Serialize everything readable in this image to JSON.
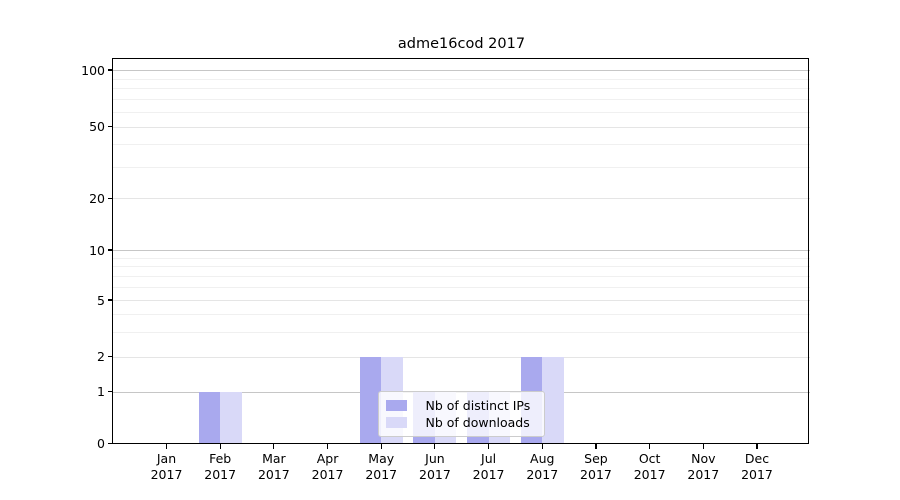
{
  "figure": {
    "title": "adme16cod 2017"
  },
  "legend": {
    "items": [
      {
        "label": "Nb of distinct IPs",
        "color": "#a9a9ee"
      },
      {
        "label": "Nb of downloads",
        "color": "#d9d9f8"
      }
    ]
  },
  "colors": {
    "bar_dark": "#a9a9ee",
    "bar_light": "#d9d9f8",
    "grid_major": "#c6c6c6",
    "grid_mid": "#e5e5e5",
    "grid_minor": "#f0f0f0",
    "axis": "#000000",
    "background": "#ffffff"
  },
  "chart_data": {
    "type": "bar",
    "title": "adme16cod 2017",
    "categories": [
      "Jan",
      "Feb",
      "Mar",
      "Apr",
      "May",
      "Jun",
      "Jul",
      "Aug",
      "Sep",
      "Oct",
      "Nov",
      "Dec"
    ],
    "year": "2017",
    "series": [
      {
        "name": "Nb of distinct IPs",
        "color": "#a9a9ee",
        "values": [
          0,
          1,
          0,
          0,
          2,
          1,
          1,
          2,
          0,
          0,
          0,
          0
        ]
      },
      {
        "name": "Nb of downloads",
        "color": "#d9d9f8",
        "values": [
          0,
          1,
          0,
          0,
          2,
          1,
          1,
          2,
          0,
          0,
          0,
          0
        ]
      }
    ],
    "xlabel": "",
    "ylabel": "",
    "yscale": "symlog",
    "ylim": [
      0,
      100
    ],
    "yticks": [
      0,
      1,
      2,
      5,
      10,
      20,
      50,
      100
    ],
    "major_gridline_values": [
      1,
      10,
      100
    ],
    "mid_gridline_values": [
      2,
      5,
      20,
      50
    ],
    "minor_gridline_values": [
      3,
      4,
      6,
      7,
      8,
      9,
      30,
      40,
      60,
      70,
      80,
      90
    ],
    "grid": true,
    "legend_position": "inside lower center-right"
  }
}
